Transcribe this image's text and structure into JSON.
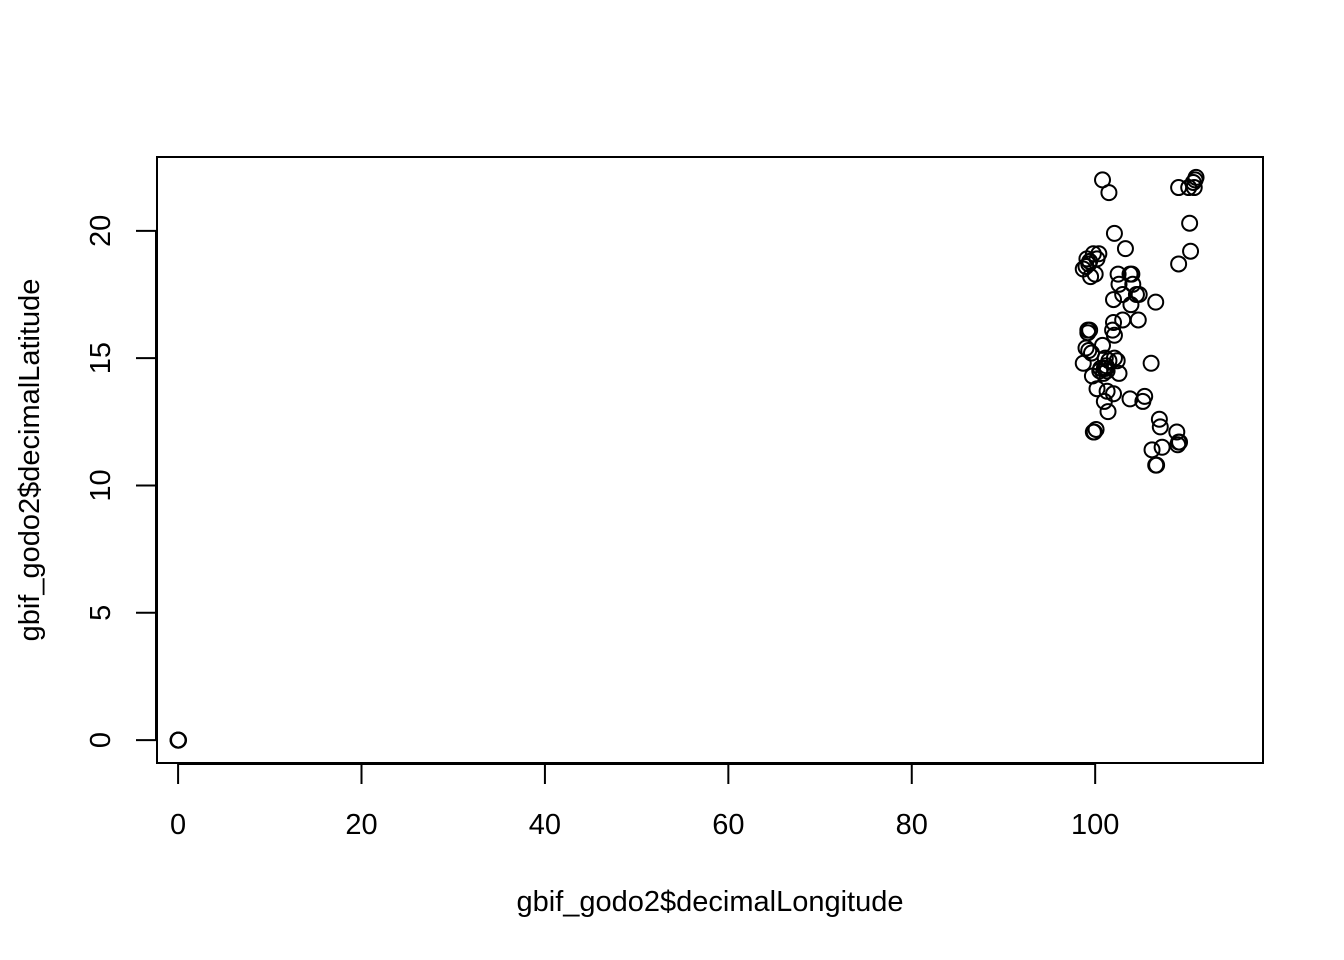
{
  "chart_data": {
    "type": "scatter",
    "xlabel": "gbif_godo2$decimalLongitude",
    "ylabel": "gbif_godo2$decimalLatitude",
    "xlim": [
      -2.3,
      118.3
    ],
    "ylim": [
      -0.9,
      22.9
    ],
    "x_ticks": [
      0,
      20,
      40,
      60,
      80,
      100
    ],
    "y_ticks": [
      0,
      5,
      10,
      15,
      20
    ],
    "x_tick_labels": [
      "0",
      "20",
      "40",
      "60",
      "80",
      "100"
    ],
    "y_tick_labels": [
      "0",
      "5",
      "10",
      "15",
      "20"
    ],
    "grid": false,
    "point_style": "open-circle",
    "points": [
      {
        "x": 0.0,
        "y": 0.0
      },
      {
        "x": 0.0,
        "y": 0.0
      },
      {
        "x": 0.05,
        "y": 0.0
      },
      {
        "x": 100.8,
        "y": 22.0
      },
      {
        "x": 101.5,
        "y": 21.5
      },
      {
        "x": 110.9,
        "y": 22.0
      },
      {
        "x": 111.0,
        "y": 22.1
      },
      {
        "x": 110.7,
        "y": 21.9
      },
      {
        "x": 110.8,
        "y": 21.7
      },
      {
        "x": 110.2,
        "y": 21.7
      },
      {
        "x": 109.1,
        "y": 21.7
      },
      {
        "x": 110.3,
        "y": 20.3
      },
      {
        "x": 110.4,
        "y": 19.2
      },
      {
        "x": 109.1,
        "y": 18.7
      },
      {
        "x": 102.1,
        "y": 19.9
      },
      {
        "x": 103.3,
        "y": 19.3
      },
      {
        "x": 99.4,
        "y": 18.8
      },
      {
        "x": 99.1,
        "y": 18.9
      },
      {
        "x": 99.0,
        "y": 18.6
      },
      {
        "x": 99.3,
        "y": 18.7
      },
      {
        "x": 99.8,
        "y": 19.1
      },
      {
        "x": 100.2,
        "y": 18.9
      },
      {
        "x": 100.4,
        "y": 19.1
      },
      {
        "x": 98.7,
        "y": 18.5
      },
      {
        "x": 99.5,
        "y": 18.2
      },
      {
        "x": 100.0,
        "y": 18.3
      },
      {
        "x": 102.5,
        "y": 18.3
      },
      {
        "x": 103.8,
        "y": 18.3
      },
      {
        "x": 104.0,
        "y": 18.3
      },
      {
        "x": 102.6,
        "y": 17.9
      },
      {
        "x": 104.1,
        "y": 17.9
      },
      {
        "x": 103.0,
        "y": 17.5
      },
      {
        "x": 104.5,
        "y": 17.5
      },
      {
        "x": 104.8,
        "y": 17.5
      },
      {
        "x": 102.0,
        "y": 17.3
      },
      {
        "x": 103.9,
        "y": 17.1
      },
      {
        "x": 106.6,
        "y": 17.2
      },
      {
        "x": 103.0,
        "y": 16.5
      },
      {
        "x": 104.7,
        "y": 16.5
      },
      {
        "x": 102.0,
        "y": 16.4
      },
      {
        "x": 101.9,
        "y": 16.1
      },
      {
        "x": 102.1,
        "y": 15.9
      },
      {
        "x": 99.2,
        "y": 16.1
      },
      {
        "x": 99.4,
        "y": 16.1
      },
      {
        "x": 99.2,
        "y": 16.0
      },
      {
        "x": 100.8,
        "y": 15.5
      },
      {
        "x": 99.0,
        "y": 15.4
      },
      {
        "x": 99.3,
        "y": 15.3
      },
      {
        "x": 99.6,
        "y": 15.2
      },
      {
        "x": 98.7,
        "y": 14.8
      },
      {
        "x": 101.1,
        "y": 15.0
      },
      {
        "x": 101.5,
        "y": 14.9
      },
      {
        "x": 101.2,
        "y": 14.7
      },
      {
        "x": 101.0,
        "y": 14.6
      },
      {
        "x": 100.6,
        "y": 14.6
      },
      {
        "x": 100.5,
        "y": 14.5
      },
      {
        "x": 101.3,
        "y": 14.5
      },
      {
        "x": 102.1,
        "y": 15.0
      },
      {
        "x": 102.4,
        "y": 14.9
      },
      {
        "x": 102.6,
        "y": 14.4
      },
      {
        "x": 101.2,
        "y": 14.6
      },
      {
        "x": 99.7,
        "y": 14.3
      },
      {
        "x": 100.9,
        "y": 14.4
      },
      {
        "x": 106.1,
        "y": 14.8
      },
      {
        "x": 100.2,
        "y": 13.8
      },
      {
        "x": 101.3,
        "y": 13.7
      },
      {
        "x": 102.0,
        "y": 13.6
      },
      {
        "x": 101.0,
        "y": 13.3
      },
      {
        "x": 103.8,
        "y": 13.4
      },
      {
        "x": 105.4,
        "y": 13.5
      },
      {
        "x": 105.2,
        "y": 13.3
      },
      {
        "x": 101.4,
        "y": 12.9
      },
      {
        "x": 99.8,
        "y": 12.1
      },
      {
        "x": 99.9,
        "y": 12.1
      },
      {
        "x": 100.1,
        "y": 12.2
      },
      {
        "x": 107.0,
        "y": 12.6
      },
      {
        "x": 107.1,
        "y": 12.3
      },
      {
        "x": 108.9,
        "y": 12.1
      },
      {
        "x": 109.2,
        "y": 11.7
      },
      {
        "x": 109.0,
        "y": 11.6
      },
      {
        "x": 109.1,
        "y": 11.7
      },
      {
        "x": 107.3,
        "y": 11.5
      },
      {
        "x": 106.2,
        "y": 11.4
      },
      {
        "x": 106.6,
        "y": 10.8
      },
      {
        "x": 106.7,
        "y": 10.8
      }
    ]
  }
}
